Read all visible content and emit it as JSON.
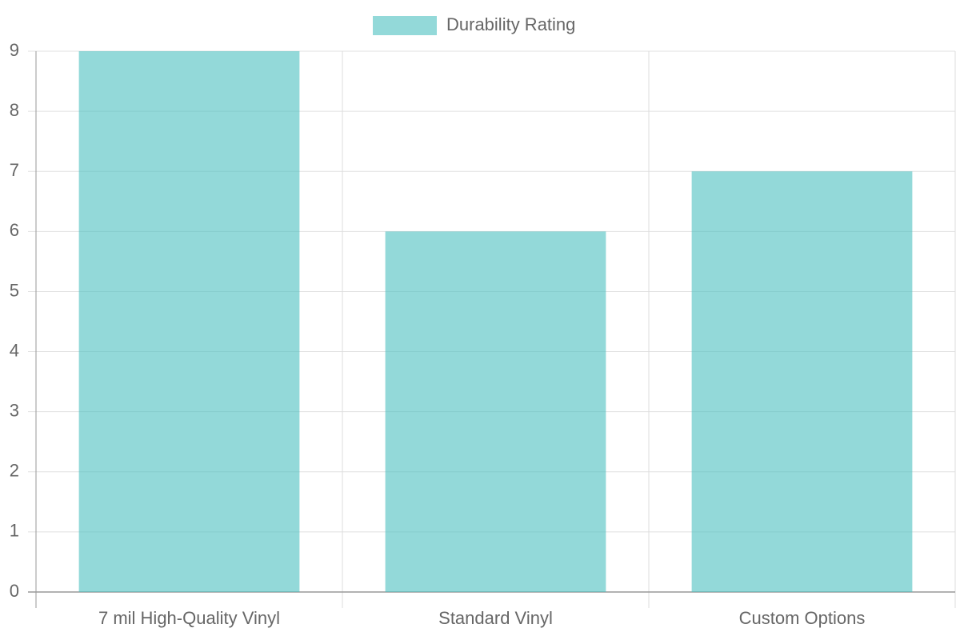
{
  "chart_data": {
    "type": "bar",
    "categories": [
      "7 mil High-Quality Vinyl",
      "Standard Vinyl",
      "Custom Options"
    ],
    "series": [
      {
        "name": "Durability Rating",
        "color": "rgba(75,192,192,0.6)",
        "values": [
          9,
          6,
          7
        ]
      }
    ],
    "ylim": [
      0,
      9
    ],
    "yticks": [
      0,
      1,
      2,
      3,
      4,
      5,
      6,
      7,
      8,
      9
    ],
    "grid": true,
    "legend": "top"
  }
}
